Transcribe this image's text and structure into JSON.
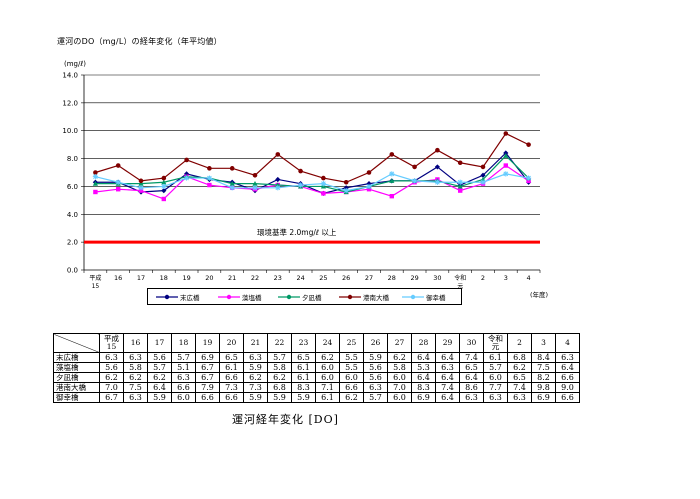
{
  "chart_data": {
    "type": "line",
    "title": "運河のDO（mg/L）の経年変化（年平均値）",
    "ylabel": "(mg/ℓ)",
    "xlabel": "(年度)",
    "ylim": [
      0,
      14
    ],
    "yticks": [
      "0.0",
      "2.0",
      "4.0",
      "6.0",
      "8.0",
      "10.0",
      "12.0",
      "14.0"
    ],
    "categories": [
      "平成15",
      "16",
      "17",
      "18",
      "19",
      "20",
      "21",
      "22",
      "23",
      "24",
      "25",
      "26",
      "27",
      "28",
      "29",
      "30",
      "令和元",
      "2",
      "3",
      "4"
    ],
    "series": [
      {
        "name": "末広橋",
        "color": "#000080",
        "marker": "diamond",
        "values": [
          6.3,
          6.3,
          5.6,
          5.7,
          6.9,
          6.5,
          6.3,
          5.7,
          6.5,
          6.2,
          5.5,
          5.9,
          6.2,
          6.4,
          6.4,
          7.4,
          6.1,
          6.8,
          8.4,
          6.3
        ]
      },
      {
        "name": "藻塩橋",
        "color": "#ff00ff",
        "marker": "square",
        "values": [
          5.6,
          5.8,
          5.7,
          5.1,
          6.7,
          6.1,
          5.9,
          5.8,
          6.1,
          6.0,
          5.5,
          5.6,
          5.8,
          5.3,
          6.3,
          6.5,
          5.7,
          6.2,
          7.5,
          6.4
        ]
      },
      {
        "name": "夕凪橋",
        "color": "#009966",
        "marker": "triangle",
        "values": [
          6.2,
          6.2,
          6.2,
          6.3,
          6.7,
          6.6,
          6.2,
          6.2,
          6.1,
          6.0,
          6.0,
          5.6,
          6.0,
          6.4,
          6.4,
          6.4,
          6.0,
          6.5,
          8.2,
          6.6
        ]
      },
      {
        "name": "港南大橋",
        "color": "#800000",
        "marker": "circle",
        "values": [
          7.0,
          7.5,
          6.4,
          6.6,
          7.9,
          7.3,
          7.3,
          6.8,
          8.3,
          7.1,
          6.6,
          6.3,
          7.0,
          8.3,
          7.4,
          8.6,
          7.7,
          7.4,
          9.8,
          9.0
        ]
      },
      {
        "name": "御幸橋",
        "color": "#66ccff",
        "marker": "star",
        "values": [
          6.7,
          6.3,
          5.9,
          6.0,
          6.6,
          6.6,
          5.9,
          5.9,
          5.9,
          6.1,
          6.2,
          5.7,
          6.0,
          6.9,
          6.4,
          6.3,
          6.3,
          6.3,
          6.9,
          6.6
        ]
      }
    ],
    "reference_line": {
      "label": "環境基準 2.0mg/ℓ 以上",
      "value": 2.0,
      "color": "#ff0000"
    },
    "grid": true,
    "legend_position": "bottom"
  },
  "table": {
    "columns": [
      "平成15",
      "16",
      "17",
      "18",
      "19",
      "20",
      "21",
      "22",
      "23",
      "24",
      "25",
      "26",
      "27",
      "28",
      "29",
      "30",
      "令和元",
      "2",
      "3",
      "4"
    ],
    "rows": [
      {
        "name": "末広橋",
        "values": [
          "6.3",
          "6.3",
          "5.6",
          "5.7",
          "6.9",
          "6.5",
          "6.3",
          "5.7",
          "6.5",
          "6.2",
          "5.5",
          "5.9",
          "6.2",
          "6.4",
          "6.4",
          "7.4",
          "6.1",
          "6.8",
          "8.4",
          "6.3"
        ]
      },
      {
        "name": "藻塩橋",
        "values": [
          "5.6",
          "5.8",
          "5.7",
          "5.1",
          "6.7",
          "6.1",
          "5.9",
          "5.8",
          "6.1",
          "6.0",
          "5.5",
          "5.6",
          "5.8",
          "5.3",
          "6.3",
          "6.5",
          "5.7",
          "6.2",
          "7.5",
          "6.4"
        ]
      },
      {
        "name": "夕凪橋",
        "values": [
          "6.2",
          "6.2",
          "6.2",
          "6.3",
          "6.7",
          "6.6",
          "6.2",
          "6.2",
          "6.1",
          "6.0",
          "6.0",
          "5.6",
          "6.0",
          "6.4",
          "6.4",
          "6.4",
          "6.0",
          "6.5",
          "8.2",
          "6.6"
        ]
      },
      {
        "name": "港南大橋",
        "values": [
          "7.0",
          "7.5",
          "6.4",
          "6.6",
          "7.9",
          "7.3",
          "7.3",
          "6.8",
          "8.3",
          "7.1",
          "6.6",
          "6.3",
          "7.0",
          "8.3",
          "7.4",
          "8.6",
          "7.7",
          "7.4",
          "9.8",
          "9.0"
        ]
      },
      {
        "name": "御幸橋",
        "values": [
          "6.7",
          "6.3",
          "5.9",
          "6.0",
          "6.6",
          "6.6",
          "5.9",
          "5.9",
          "5.9",
          "6.1",
          "6.2",
          "5.7",
          "6.0",
          "6.9",
          "6.4",
          "6.3",
          "6.3",
          "6.3",
          "6.9",
          "6.6"
        ]
      }
    ]
  },
  "caption": "運河経年変化 [DO]"
}
